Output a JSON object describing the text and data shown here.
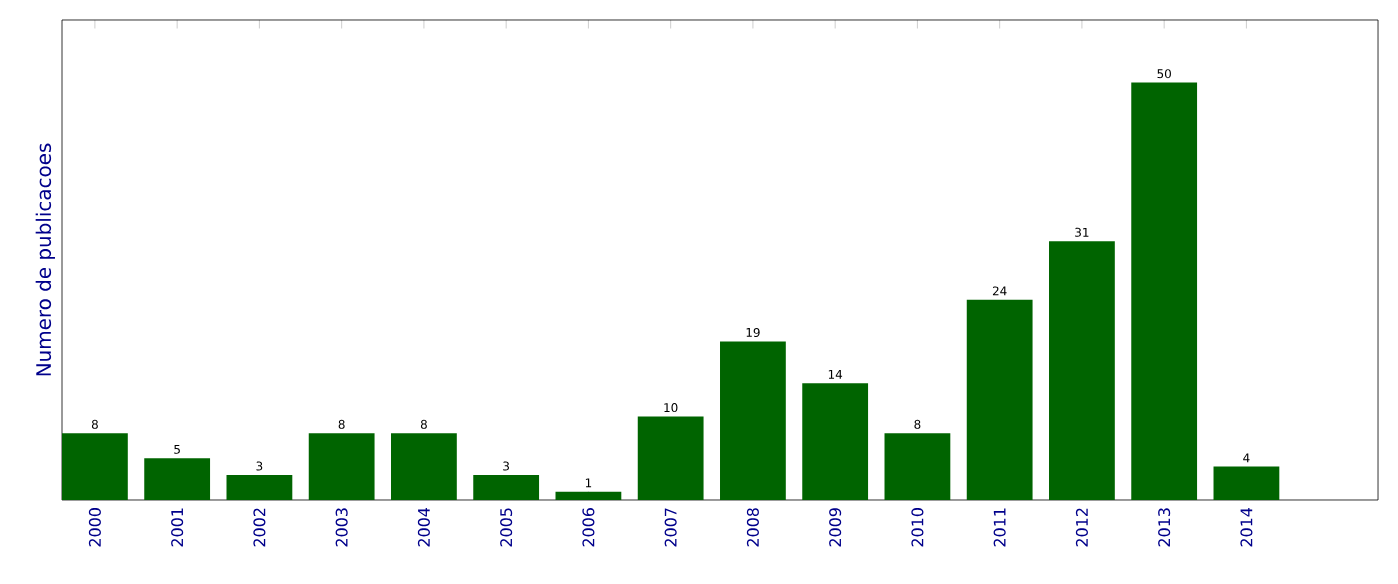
{
  "chart_data": {
    "type": "bar",
    "ylabel": "Numero de publicacoes",
    "categories": [
      "2000",
      "2001",
      "2002",
      "2003",
      "2004",
      "2005",
      "2006",
      "2007",
      "2008",
      "2009",
      "2010",
      "2011",
      "2012",
      "2013",
      "2014"
    ],
    "values": [
      8,
      5,
      3,
      8,
      8,
      3,
      1,
      10,
      19,
      14,
      8,
      24,
      31,
      50,
      4
    ],
    "color": "#006400",
    "data_labels": true,
    "tick_labels": "x",
    "grid": false
  }
}
